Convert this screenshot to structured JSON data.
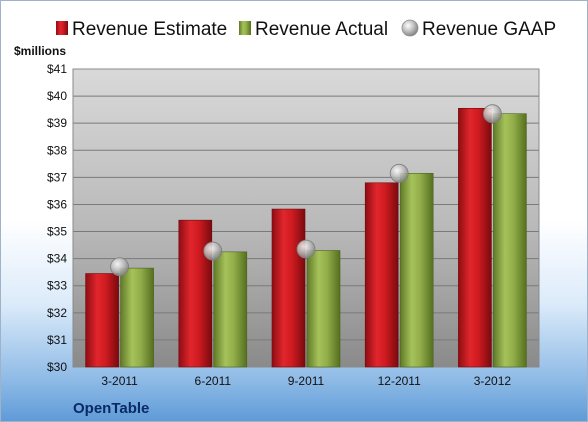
{
  "chart_data": {
    "type": "bar",
    "title": "",
    "ylabel": "$millions",
    "xlabel": "",
    "company": "OpenTable",
    "categories": [
      "3-2011",
      "6-2011",
      "9-2011",
      "12-2011",
      "3-2012"
    ],
    "ylim": [
      30,
      41
    ],
    "yticks": [
      "$30",
      "$31",
      "$32",
      "$33",
      "$34",
      "$35",
      "$36",
      "$37",
      "$38",
      "$39",
      "$40",
      "$41"
    ],
    "grid": true,
    "legend_position": "top",
    "series": [
      {
        "name": "Revenue Estimate",
        "type": "bar",
        "color": "#c0151b",
        "values": [
          33.45,
          35.42,
          35.83,
          36.8,
          39.55
        ]
      },
      {
        "name": "Revenue Actual",
        "type": "bar",
        "color": "#8aa442",
        "values": [
          33.65,
          34.25,
          34.3,
          37.15,
          39.35
        ]
      },
      {
        "name": "Revenue GAAP",
        "type": "scatter",
        "color": "#b0b0b0",
        "values": [
          33.7,
          34.28,
          34.35,
          37.15,
          39.35
        ]
      }
    ]
  }
}
